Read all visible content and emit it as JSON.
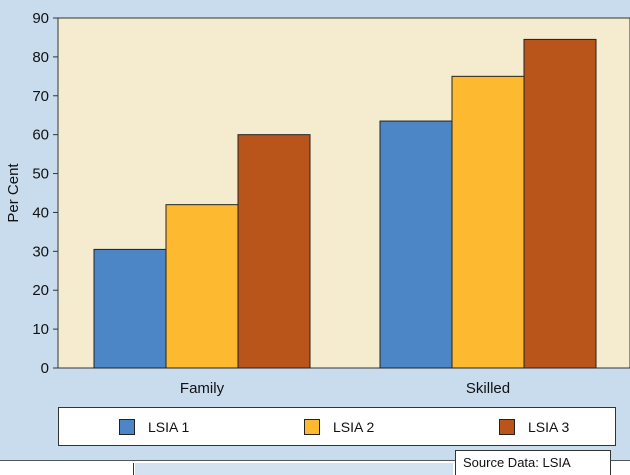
{
  "chart_data": {
    "type": "bar",
    "categories": [
      "Family",
      "Skilled"
    ],
    "series": [
      {
        "name": "LSIA 1",
        "values": [
          30.5,
          63.5
        ],
        "color": "#4d86c6"
      },
      {
        "name": "LSIA 2",
        "values": [
          42,
          75
        ],
        "color": "#fdb92f"
      },
      {
        "name": "LSIA 3",
        "values": [
          60,
          84.5
        ],
        "color": "#b9541a"
      }
    ],
    "ylabel": "Per Cent",
    "ylim": [
      0,
      90
    ],
    "yticks": [
      "0",
      "10",
      "20",
      "30",
      "40",
      "50",
      "60",
      "70",
      "80",
      "90"
    ],
    "legend_position": "bottom",
    "plot_background": "#f5ecd0",
    "page_background": "#c9dcee"
  },
  "source_note": "Source Data: LSIA"
}
